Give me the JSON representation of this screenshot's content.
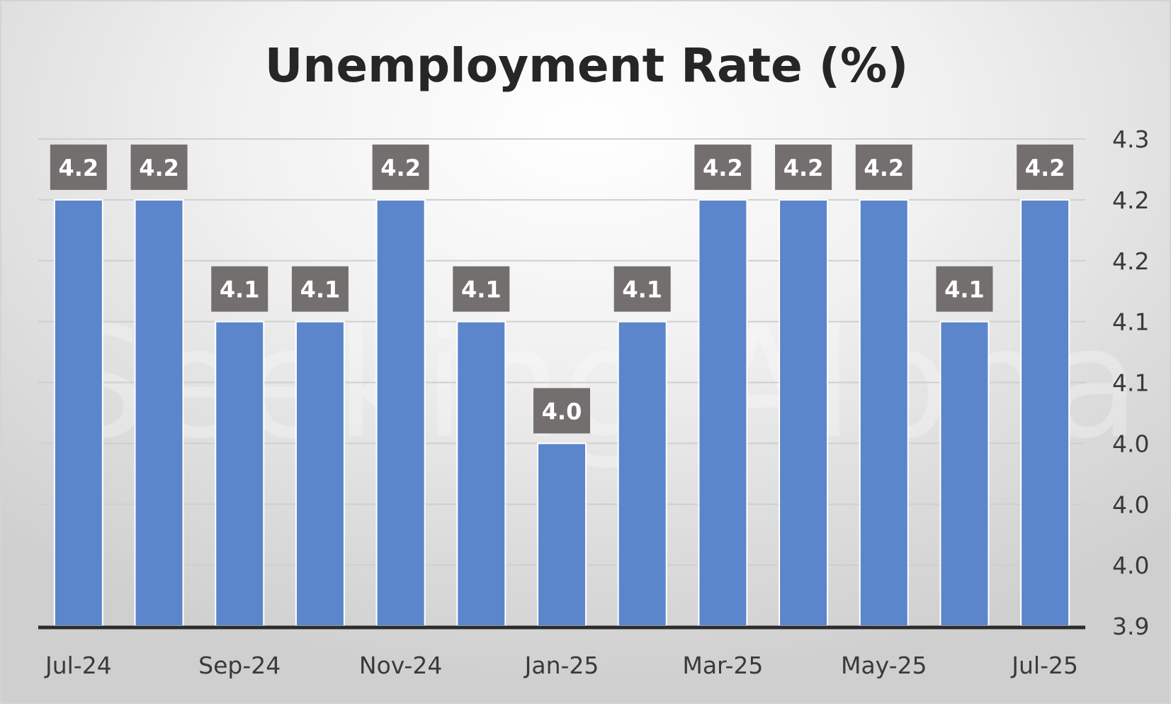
{
  "chart_data": {
    "type": "bar",
    "title": "Unemployment Rate (%)",
    "watermark": "Seeking Alpha",
    "categories": [
      "Jul-24",
      "Aug-24",
      "Sep-24",
      "Oct-24",
      "Nov-24",
      "Dec-24",
      "Jan-25",
      "Feb-25",
      "Mar-25",
      "Apr-25",
      "May-25",
      "Jun-25",
      "Jul-25"
    ],
    "x_tick_labels": [
      "Jul-24",
      "",
      "Sep-24",
      "",
      "Nov-24",
      "",
      "Jan-25",
      "",
      "Mar-25",
      "",
      "May-25",
      "",
      "Jul-25"
    ],
    "values": [
      4.25,
      4.25,
      4.15,
      4.15,
      4.25,
      4.15,
      4.05,
      4.15,
      4.25,
      4.25,
      4.25,
      4.15,
      4.25
    ],
    "data_labels": [
      "4.2",
      "4.2",
      "4.1",
      "4.1",
      "4.2",
      "4.1",
      "4.0",
      "4.1",
      "4.2",
      "4.2",
      "4.2",
      "4.1",
      "4.2"
    ],
    "ylim": [
      3.9,
      4.3
    ],
    "y_ticks": [
      3.9,
      3.95,
      4.0,
      4.05,
      4.1,
      4.15,
      4.2,
      4.25,
      4.3
    ],
    "y_tick_labels": [
      "3.9",
      "4.0",
      "4.0",
      "4.0",
      "4.1",
      "4.1",
      "4.2",
      "4.2",
      "4.3"
    ],
    "y_axis_side": "right",
    "xlabel": "",
    "ylabel": "",
    "grid": true,
    "legend": "none",
    "colors": {
      "bar": "#5b86cc",
      "bar_edge": "#ffffff",
      "label_box": "#736f6f",
      "gridline": "#cfcfcf",
      "axis": "#2b2b2b"
    }
  }
}
